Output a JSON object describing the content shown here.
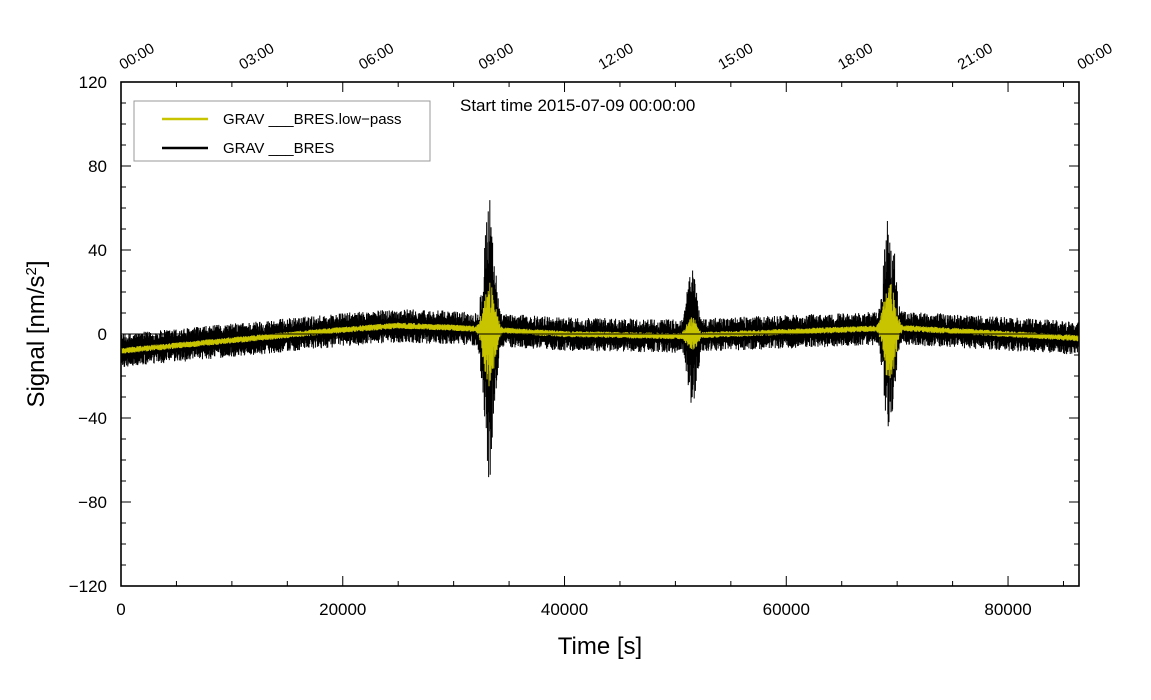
{
  "chart_data": {
    "type": "line",
    "xlabel": "Time [s]",
    "ylabel_main": "Signal [nm/s",
    "ylabel_sup": "2",
    "ylabel_close": "]",
    "xlim": [
      0,
      86400
    ],
    "ylim": [
      -120,
      120
    ],
    "x_ticks": [
      0,
      20000,
      40000,
      60000,
      80000
    ],
    "x_tick_labels": [
      "0",
      "20000",
      "40000",
      "60000",
      "80000"
    ],
    "y_ticks": [
      -120,
      -80,
      -40,
      0,
      40,
      80,
      120
    ],
    "y_tick_labels": [
      "−120",
      "−80",
      "−40",
      "0",
      "40",
      "80",
      "120"
    ],
    "top_axis_labels": [
      "00:00",
      "03:00",
      "06:00",
      "09:00",
      "12:00",
      "15:00",
      "18:00",
      "21:00",
      "00:00"
    ],
    "annotation": "Start time 2015-07-09 00:00:00",
    "legend_position": "top-left",
    "series": [
      {
        "name": "GRAV ___BRES.low−pass",
        "color": "#c8c400",
        "drift": {
          "x": [
            0,
            10000,
            20000,
            25000,
            30000,
            40000,
            50000,
            60000,
            70000,
            80000,
            86400
          ],
          "y": [
            -8,
            -3,
            2,
            4,
            3,
            0,
            -1,
            1,
            3,
            0,
            -2
          ]
        },
        "noise_amplitude": 1.5,
        "events": [
          {
            "x": 33200,
            "peak": 25,
            "min": -25
          },
          {
            "x": 51500,
            "peak": 8,
            "min": -8
          },
          {
            "x": 69300,
            "peak": 25,
            "min": -25
          }
        ]
      },
      {
        "name": "GRAV ___BRES",
        "color": "#000000",
        "drift": {
          "x": [
            0,
            10000,
            20000,
            25000,
            30000,
            40000,
            50000,
            60000,
            70000,
            80000,
            86400
          ],
          "y": [
            -8,
            -3,
            2,
            4,
            3,
            0,
            -1,
            1,
            3,
            0,
            -2
          ]
        },
        "noise_amplitude": 8,
        "events": [
          {
            "x": 33200,
            "peak": 67,
            "min": -70
          },
          {
            "x": 51500,
            "peak": 32,
            "min": -35
          },
          {
            "x": 69300,
            "peak": 59,
            "min": -49
          }
        ]
      }
    ]
  }
}
